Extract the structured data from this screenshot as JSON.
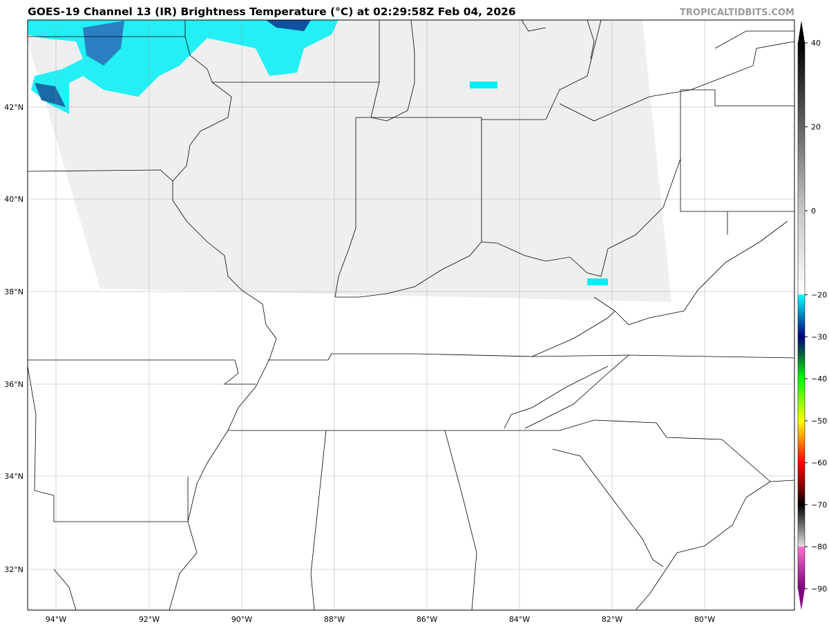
{
  "title": "GOES-19 Channel 13 (IR) Brightness Temperature (°C) at 02:29:58Z Feb 04, 2026",
  "credit": "TROPICALTIDBITS.COM",
  "map": {
    "lat_labels": [
      "42°N",
      "40°N",
      "38°N",
      "36°N",
      "34°N",
      "32°N"
    ],
    "lon_labels": [
      "94°W",
      "92°W",
      "90°W",
      "88°W",
      "86°W",
      "84°W",
      "82°W",
      "80°W"
    ],
    "cloud_color": "#efefef",
    "cold_cloud_color": "#00e5f0"
  },
  "colorbar": {
    "ticks": [
      "40",
      "20",
      "0",
      "−20",
      "−30",
      "−40",
      "−50",
      "−60",
      "−70",
      "−80",
      "−90"
    ],
    "tick_values": [
      40,
      20,
      0,
      -20,
      -30,
      -40,
      -50,
      -60,
      -70,
      -80,
      -90
    ],
    "stops": [
      {
        "v": 40,
        "c": "#000000"
      },
      {
        "v": 0,
        "c": "#c8c8c8"
      },
      {
        "v": -19.9,
        "c": "#ffffff"
      },
      {
        "v": -20,
        "c": "#00ffff"
      },
      {
        "v": -25,
        "c": "#0080c0"
      },
      {
        "v": -30,
        "c": "#000080"
      },
      {
        "v": -34,
        "c": "#006040"
      },
      {
        "v": -40,
        "c": "#00ff00"
      },
      {
        "v": -50,
        "c": "#ffff00"
      },
      {
        "v": -55,
        "c": "#ff8000"
      },
      {
        "v": -60,
        "c": "#ff0000"
      },
      {
        "v": -66,
        "c": "#800000"
      },
      {
        "v": -70,
        "c": "#000000"
      },
      {
        "v": -79.9,
        "c": "#e0e0e0"
      },
      {
        "v": -80,
        "c": "#ff70d0"
      },
      {
        "v": -90,
        "c": "#800080"
      }
    ]
  }
}
